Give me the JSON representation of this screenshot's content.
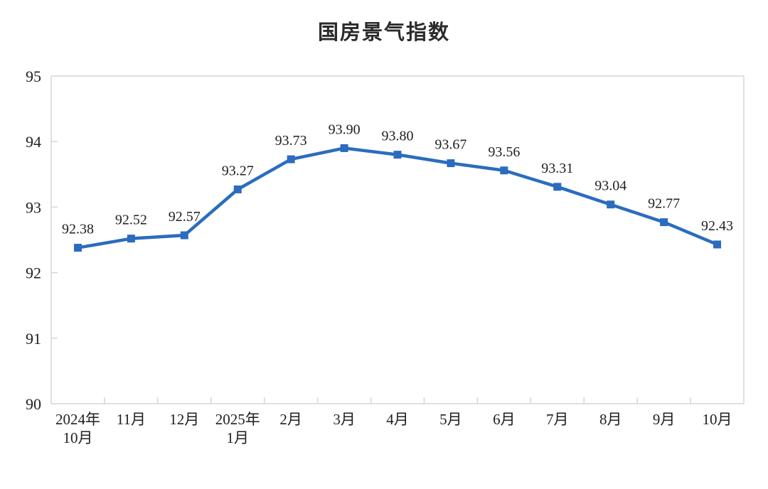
{
  "chart_data": {
    "type": "line",
    "title": "国房景气指数",
    "categories": [
      [
        "2024年",
        "10月"
      ],
      [
        "11月"
      ],
      [
        "12月"
      ],
      [
        "2025年",
        "1月"
      ],
      [
        "2月"
      ],
      [
        "3月"
      ],
      [
        "4月"
      ],
      [
        "5月"
      ],
      [
        "6月"
      ],
      [
        "7月"
      ],
      [
        "8月"
      ],
      [
        "9月"
      ],
      [
        "10月"
      ]
    ],
    "series": [
      {
        "name": "国房景气指数",
        "values": [
          92.38,
          92.52,
          92.57,
          93.27,
          93.73,
          93.9,
          93.8,
          93.67,
          93.56,
          93.31,
          93.04,
          92.77,
          92.43
        ],
        "labels": [
          "92.38",
          "92.52",
          "92.57",
          "93.27",
          "93.73",
          "93.90",
          "93.80",
          "93.67",
          "93.56",
          "93.31",
          "93.04",
          "92.77",
          "92.43"
        ]
      }
    ],
    "ylim": [
      90,
      95
    ],
    "yticks": [
      90,
      91,
      92,
      93,
      94,
      95
    ],
    "ytick_labels": [
      "90",
      "91",
      "92",
      "93",
      "94",
      "95"
    ],
    "grid": false,
    "legend": "none",
    "marker": "square",
    "xlabel": "",
    "ylabel": "",
    "colors": {
      "line": "#2B6CBF",
      "axis": "#D6D6D6",
      "tick_label": "#1F1F1F",
      "data_label": "#1F1F1F",
      "title": "#2B2B2B",
      "background": "#FFFFFF"
    }
  }
}
